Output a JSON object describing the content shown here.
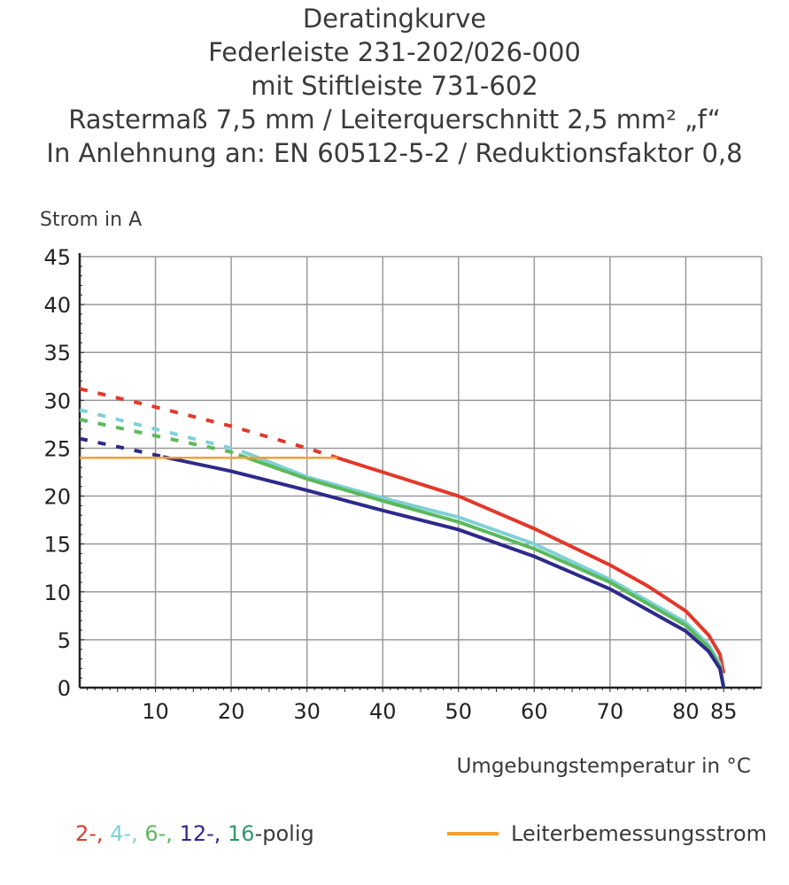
{
  "title_lines": [
    "Deratingkurve",
    "Federleiste 231-202/026-000",
    "mit Stiftleiste 731-602",
    "Rastermaß 7,5 mm / Leiterquerschnitt 2,5 mm² „f“",
    "In Anlehnung an: EN 60512-5-2 / Reduktionsfaktor 0,8"
  ],
  "chart_data": {
    "type": "line",
    "ylabel": "Strom in A",
    "xlabel": "Umgebungstemperatur in °C",
    "xlim": [
      0,
      90
    ],
    "ylim": [
      0,
      45
    ],
    "grid": true,
    "xticks": [
      10,
      20,
      30,
      40,
      50,
      60,
      70,
      80,
      85
    ],
    "yticks": [
      0,
      5,
      10,
      15,
      20,
      25,
      30,
      35,
      40,
      45
    ],
    "series": [
      {
        "color": "#e2382a",
        "dash_until": 34,
        "x": [
          0,
          10,
          20,
          30,
          34,
          40,
          50,
          60,
          70,
          75,
          80,
          83,
          84.5,
          85
        ],
        "y": [
          31.2,
          29.3,
          27.3,
          25,
          24,
          22.5,
          20,
          16.6,
          12.8,
          10.6,
          8,
          5.5,
          3.5,
          1.5
        ]
      },
      {
        "color": "#7fd0d6",
        "dash_until": 22,
        "x": [
          0,
          10,
          20,
          22,
          30,
          40,
          50,
          60,
          70,
          80,
          83,
          84.5,
          85
        ],
        "y": [
          29,
          27,
          25,
          24.5,
          22,
          19.8,
          17.8,
          15,
          11.3,
          6.8,
          4.5,
          2.5,
          0
        ]
      },
      {
        "color": "#5cb85c",
        "dash_until": 21,
        "x": [
          0,
          10,
          20,
          21,
          30,
          40,
          50,
          60,
          70,
          80,
          83,
          84.5,
          85
        ],
        "y": [
          28,
          26.3,
          24.6,
          24.3,
          21.8,
          19.5,
          17.3,
          14.5,
          11,
          6.5,
          4.2,
          2.2,
          0
        ]
      },
      {
        "color": "#2e2a8a",
        "dash_until": 11,
        "x": [
          0,
          10,
          11,
          20,
          30,
          40,
          50,
          60,
          70,
          80,
          83,
          84.5,
          85
        ],
        "y": [
          26,
          24.3,
          24.1,
          22.6,
          20.6,
          18.5,
          16.5,
          13.7,
          10.3,
          5.9,
          3.8,
          2,
          0
        ]
      },
      {
        "color": "#f5a030",
        "name": "Leiterbemessungsstrom",
        "dash_until": 0,
        "x": [
          0,
          34
        ],
        "y": [
          24,
          24
        ]
      }
    ],
    "legend": {
      "poles": [
        {
          "text": "2-,",
          "color": "#e2382a"
        },
        {
          "text": " 4-,",
          "color": "#7fd0d6"
        },
        {
          "text": " 6-,",
          "color": "#5cb85c"
        },
        {
          "text": " 12-,",
          "color": "#2e2a8a"
        },
        {
          "text": " 16",
          "color": "#2e9a6a"
        },
        {
          "text": "-polig",
          "color": "#3a3a3a"
        }
      ],
      "current_label": "Leiterbemessungsstrom",
      "current_color": "#f5a030"
    }
  }
}
